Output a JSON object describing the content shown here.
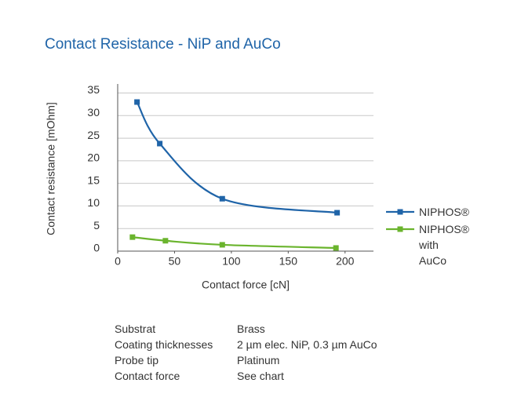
{
  "chart_data": {
    "type": "line",
    "title": "Contact Resistance - NiP and AuCo",
    "x_label": "Contact force [cN]",
    "y_label": "Contact resistance [mOhm]",
    "series": [
      {
        "name": "NIPHOS®",
        "color": "#1f64a8",
        "x": [
          17,
          37,
          92,
          193
        ],
        "values": [
          33,
          23.8,
          11.6,
          8.5
        ]
      },
      {
        "name": "NIPHOS® with AuCo",
        "color": "#6ab42d",
        "x": [
          13,
          42,
          92,
          192
        ],
        "values": [
          3.1,
          2.3,
          1.4,
          0.7
        ]
      }
    ],
    "xlim": [
      0,
      225
    ],
    "xticks": [
      0,
      50,
      100,
      150,
      200
    ],
    "ylim": [
      0,
      37
    ],
    "yticks": [
      0,
      5,
      10,
      15,
      20,
      25,
      30,
      35
    ],
    "grid": true,
    "legend": "right"
  },
  "table": {
    "rows": [
      [
        "Substrat",
        "Brass"
      ],
      [
        "Coating thicknesses",
        "2 µm elec. NiP, 0.3 µm AuCo"
      ],
      [
        "Probe tip",
        "Platinum"
      ],
      [
        "Contact force",
        "See chart"
      ]
    ]
  }
}
